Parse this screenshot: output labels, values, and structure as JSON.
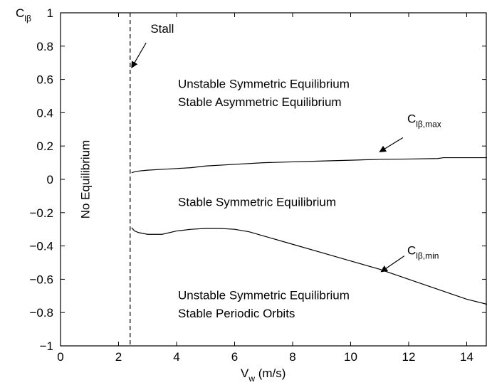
{
  "chart_data": {
    "type": "line",
    "xlabel": {
      "main": "V",
      "sub": "w",
      "unit": " (m/s)"
    },
    "ylabel": {
      "main": "C",
      "sub": "lβ"
    },
    "xlim": [
      0,
      14.7
    ],
    "ylim": [
      -1,
      1
    ],
    "xticks": [
      0,
      2,
      4,
      6,
      8,
      10,
      12,
      14
    ],
    "xtick_labels": [
      "0",
      "2",
      "4",
      "6",
      "8",
      "10",
      "12",
      "14"
    ],
    "yticks": [
      1,
      0.8,
      0.6,
      0.4,
      0.2,
      0,
      -0.2,
      -0.4,
      -0.6,
      -0.8,
      -1
    ],
    "ytick_labels": [
      "1",
      "0.8",
      "0.6",
      "0.4",
      "0.2",
      "0",
      "−0.2",
      "−0.4",
      "−0.6",
      "−0.8",
      "−1"
    ],
    "grid": false,
    "stall_x": 2.4,
    "series": [
      {
        "name": "C_lβ,max",
        "x": [
          2.45,
          2.55,
          2.7,
          3.0,
          3.5,
          4.0,
          4.5,
          5.0,
          6.0,
          7.0,
          8.0,
          9.0,
          10.0,
          11.0,
          12.0,
          13.0,
          13.2,
          14.0,
          14.7
        ],
        "y": [
          0.04,
          0.045,
          0.05,
          0.055,
          0.06,
          0.065,
          0.07,
          0.08,
          0.09,
          0.1,
          0.105,
          0.11,
          0.115,
          0.12,
          0.122,
          0.125,
          0.13,
          0.13,
          0.13
        ]
      },
      {
        "name": "C_lβ,min",
        "x": [
          2.45,
          2.55,
          2.7,
          3.0,
          3.5,
          4.0,
          4.5,
          5.0,
          5.5,
          6.0,
          6.5,
          7.0,
          8.0,
          9.0,
          10.0,
          11.0,
          12.0,
          13.0,
          14.0,
          14.7
        ],
        "y": [
          -0.29,
          -0.31,
          -0.32,
          -0.33,
          -0.33,
          -0.31,
          -0.3,
          -0.295,
          -0.295,
          -0.3,
          -0.315,
          -0.34,
          -0.39,
          -0.44,
          -0.49,
          -0.54,
          -0.6,
          -0.66,
          -0.72,
          -0.75
        ]
      }
    ],
    "annotations": {
      "stall": {
        "text": "Stall",
        "x": 3.1,
        "y": 0.88,
        "arrow_to": [
          2.45,
          0.67
        ]
      },
      "no_eq": {
        "text": "No Equilibrium",
        "x": 1.0,
        "y": 0.0,
        "rotate": -90
      },
      "unstable_sym_top": {
        "text": "Unstable Symmetric Equilibrium",
        "x": 4.05,
        "y": 0.55
      },
      "stable_asym": {
        "text": "Stable Asymmetric Equilibrium",
        "x": 4.05,
        "y": 0.44
      },
      "cmax": {
        "main": "C",
        "sub": "lβ,max",
        "x": 11.95,
        "y": 0.34,
        "arrow_from": [
          11.8,
          0.25
        ],
        "arrow_to": [
          11.0,
          0.165
        ]
      },
      "stable_sym": {
        "text": "Stable Symmetric Equilibrium",
        "x": 4.05,
        "y": -0.16
      },
      "cmin": {
        "main": "C",
        "sub": "lβ,min",
        "x": 11.95,
        "y": -0.45,
        "arrow_from": [
          11.85,
          -0.46
        ],
        "arrow_to": [
          11.05,
          -0.555
        ]
      },
      "unstable_sym_bottom": {
        "text": "Unstable Symmetric Equilibrium",
        "x": 4.05,
        "y": -0.72
      },
      "periodic": {
        "text": "Stable Periodic Orbits",
        "x": 4.05,
        "y": -0.83
      }
    }
  }
}
